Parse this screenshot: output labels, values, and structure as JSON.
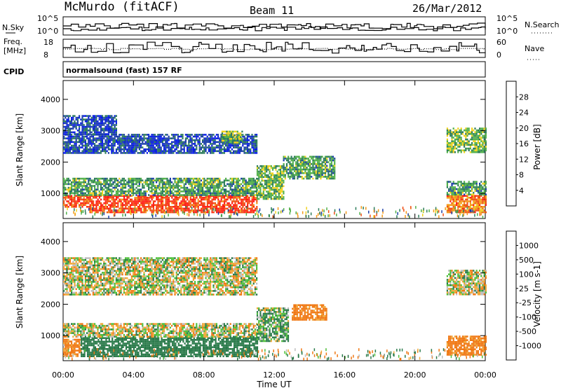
{
  "header": {
    "station": "McMurdo (fitACF)",
    "beam": "Beam 11",
    "date": "26/Mar/2012"
  },
  "noise_panel": {
    "left_label": "N.Sky",
    "right_label": "N.Search",
    "left_ticks": [
      "10^5",
      "10^0"
    ],
    "right_ticks": [
      "10^5",
      "10^0"
    ]
  },
  "freq_panel": {
    "left_label_1": "Freq.",
    "left_label_2": "[MHz]",
    "right_label": "Nave",
    "left_ticks": [
      "18",
      "8"
    ],
    "right_ticks": [
      "60",
      "0"
    ]
  },
  "cpid": {
    "label": "CPID",
    "value": "normalsound (fast) 157 RF"
  },
  "x_axis": {
    "label": "Time UT",
    "ticks": [
      "00:00",
      "04:00",
      "08:00",
      "12:00",
      "16:00",
      "20:00",
      "00:00"
    ]
  },
  "colors": {
    "power": [
      "#0a1ee6",
      "#1d3fa8",
      "#2e7d5b",
      "#52b04a",
      "#f0d21e",
      "#f39a1a",
      "#f05014",
      "#ff1e14"
    ],
    "velocity": [
      "#1e3cc8",
      "#2a5fa6",
      "#2a7a4a",
      "#4fbf3a",
      "#bebebe",
      "#f0a838",
      "#f07814",
      "#f04a14",
      "#ff1e14"
    ]
  },
  "chart_data": [
    {
      "type": "heatmap",
      "title": "",
      "xlabel": "Time UT",
      "ylabel": "Slant Range [km]",
      "x_range_hours": [
        0,
        24
      ],
      "ylim": [
        200,
        4600
      ],
      "x_ticks": [
        "00:00",
        "04:00",
        "08:00",
        "12:00",
        "16:00",
        "20:00",
        "00:00"
      ],
      "y_ticks": [
        1000,
        2000,
        3000,
        4000
      ],
      "colorbar": {
        "label": "Power [dB]",
        "ticks": [
          "28",
          "24",
          "20",
          "16",
          "12",
          "8",
          "4"
        ],
        "range": [
          0,
          32
        ]
      },
      "regions": [
        {
          "x": [
            0,
            1.5
          ],
          "y": [
            550,
            950
          ],
          "value": 26
        },
        {
          "x": [
            1.5,
            11
          ],
          "y": [
            400,
            950
          ],
          "value": 28
        },
        {
          "x": [
            0,
            11
          ],
          "y": [
            950,
            1500
          ],
          "value": 12
        },
        {
          "x": [
            11,
            12.5
          ],
          "y": [
            800,
            1900
          ],
          "value": 14
        },
        {
          "x": [
            12.5,
            15.4
          ],
          "y": [
            1500,
            2200
          ],
          "value": 12
        },
        {
          "x": [
            0,
            11
          ],
          "y": [
            2300,
            2900
          ],
          "value": 6
        },
        {
          "x": [
            0,
            3
          ],
          "y": [
            2900,
            3500
          ],
          "value": 5
        },
        {
          "x": [
            9,
            10.2
          ],
          "y": [
            2600,
            3000
          ],
          "value": 14
        },
        {
          "x": [
            21.8,
            24
          ],
          "y": [
            400,
            950
          ],
          "value": 24
        },
        {
          "x": [
            21.8,
            24
          ],
          "y": [
            950,
            1400
          ],
          "value": 12
        },
        {
          "x": [
            21.8,
            24
          ],
          "y": [
            2300,
            3100
          ],
          "value": 14
        }
      ]
    },
    {
      "type": "heatmap",
      "title": "",
      "xlabel": "Time UT",
      "ylabel": "Slant Range [km]",
      "x_range_hours": [
        0,
        24
      ],
      "ylim": [
        200,
        4600
      ],
      "x_ticks": [
        "00:00",
        "04:00",
        "08:00",
        "12:00",
        "16:00",
        "20:00",
        "00:00"
      ],
      "y_ticks": [
        1000,
        2000,
        3000,
        4000
      ],
      "colorbar": {
        "label": "Velocity [m s-1]",
        "ticks": [
          "1000",
          "500",
          "100",
          "25",
          "-25",
          "-100",
          "-500",
          "-1000"
        ],
        "range": [
          -1000,
          1000
        ]
      },
      "regions": [
        {
          "x": [
            0,
            1.0
          ],
          "y": [
            350,
            900
          ],
          "value": -150
        },
        {
          "x": [
            1.0,
            11
          ],
          "y": [
            350,
            950
          ],
          "value": 300
        },
        {
          "x": [
            0,
            11
          ],
          "y": [
            950,
            1400
          ],
          "value": 0
        },
        {
          "x": [
            11,
            12.8
          ],
          "y": [
            800,
            1900
          ],
          "value": 80
        },
        {
          "x": [
            13,
            15
          ],
          "y": [
            1500,
            2000
          ],
          "value": -200
        },
        {
          "x": [
            0,
            11
          ],
          "y": [
            2300,
            3500
          ],
          "value": 0
        },
        {
          "x": [
            21.8,
            24
          ],
          "y": [
            400,
            1000
          ],
          "value": -200
        },
        {
          "x": [
            21.8,
            24
          ],
          "y": [
            2300,
            3100
          ],
          "value": 0
        }
      ]
    }
  ]
}
